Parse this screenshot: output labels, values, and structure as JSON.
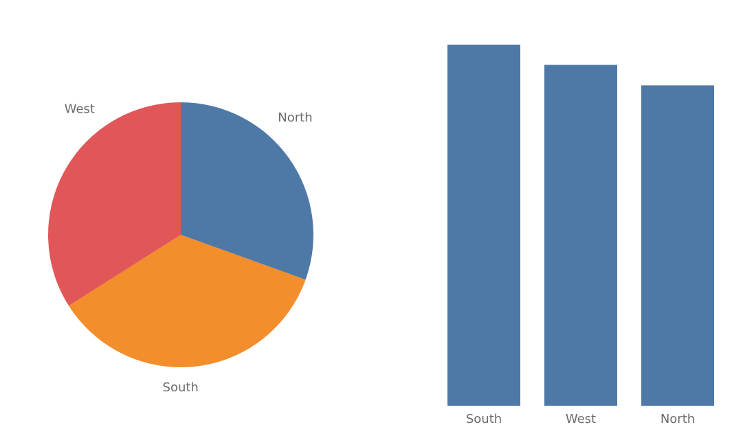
{
  "chart_data": [
    {
      "type": "pie",
      "labels": [
        "North",
        "South",
        "West"
      ],
      "values": [
        30.5,
        35.5,
        34.0
      ],
      "colors": [
        "#4e79a7",
        "#f28e2b",
        "#e15759"
      ],
      "legend": "none",
      "data_labels": "outside"
    },
    {
      "type": "bar",
      "categories": [
        "South",
        "West",
        "North"
      ],
      "values": [
        100,
        94.4,
        88.7
      ],
      "color": "#4e79a7",
      "ylim": [
        0,
        100
      ],
      "grid": false,
      "value_axis": "hidden"
    }
  ]
}
